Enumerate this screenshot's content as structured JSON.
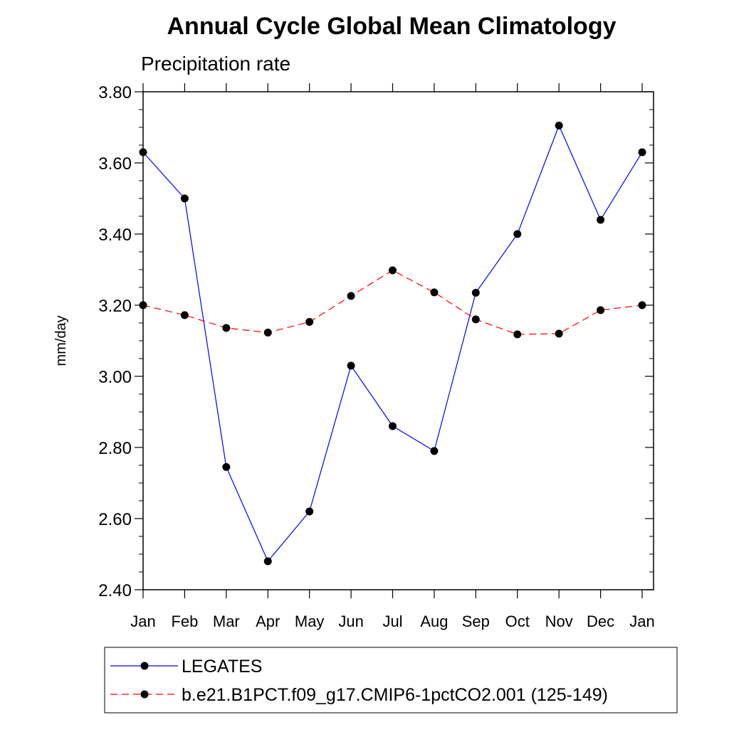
{
  "chart_data": {
    "type": "line",
    "title": "Annual Cycle Global Mean Climatology",
    "subtitle": "Precipitation rate",
    "xlabel": "",
    "ylabel": "mm/day",
    "categories": [
      "Jan",
      "Feb",
      "Mar",
      "Apr",
      "May",
      "Jun",
      "Jul",
      "Aug",
      "Sep",
      "Oct",
      "Nov",
      "Dec",
      "Jan"
    ],
    "ylim": [
      2.4,
      3.8
    ],
    "yticks": [
      "2.40",
      "2.60",
      "2.80",
      "3.00",
      "3.20",
      "3.40",
      "3.60",
      "3.80"
    ],
    "ytick_values": [
      2.4,
      2.6,
      2.8,
      3.0,
      3.2,
      3.4,
      3.6,
      3.8
    ],
    "series": [
      {
        "name": "LEGATES",
        "color": "#0000ff",
        "dash": "solid",
        "values": [
          3.63,
          3.5,
          2.745,
          2.48,
          2.62,
          3.03,
          2.86,
          2.79,
          3.235,
          3.4,
          3.705,
          3.44,
          3.63
        ]
      },
      {
        "name": "b.e21.B1PCT.f09_g17.CMIP6-1pctCO2.001 (125-149)",
        "color": "#ff0000",
        "dash": "dashed",
        "values": [
          3.2,
          3.172,
          3.136,
          3.123,
          3.153,
          3.226,
          3.298,
          3.236,
          3.16,
          3.118,
          3.12,
          3.186,
          3.2
        ]
      }
    ],
    "legend_position": "bottom"
  }
}
